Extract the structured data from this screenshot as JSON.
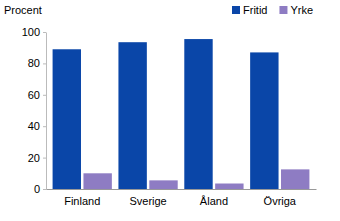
{
  "chart_data": {
    "type": "bar",
    "y_label": "Procent",
    "categories": [
      "Finland",
      "Sverige",
      "Åland",
      "Övriga"
    ],
    "series": [
      {
        "name": "Fritid",
        "color": "#0a46a8",
        "values": [
          89,
          93.5,
          95.5,
          87
        ]
      },
      {
        "name": "Yrke",
        "color": "#8e7cc3",
        "values": [
          10,
          5.5,
          3.5,
          12.5
        ]
      }
    ],
    "ylim": [
      0,
      100
    ],
    "yticks": [
      0,
      20,
      40,
      60,
      80,
      100
    ],
    "grid": false,
    "legend": "top-right"
  }
}
